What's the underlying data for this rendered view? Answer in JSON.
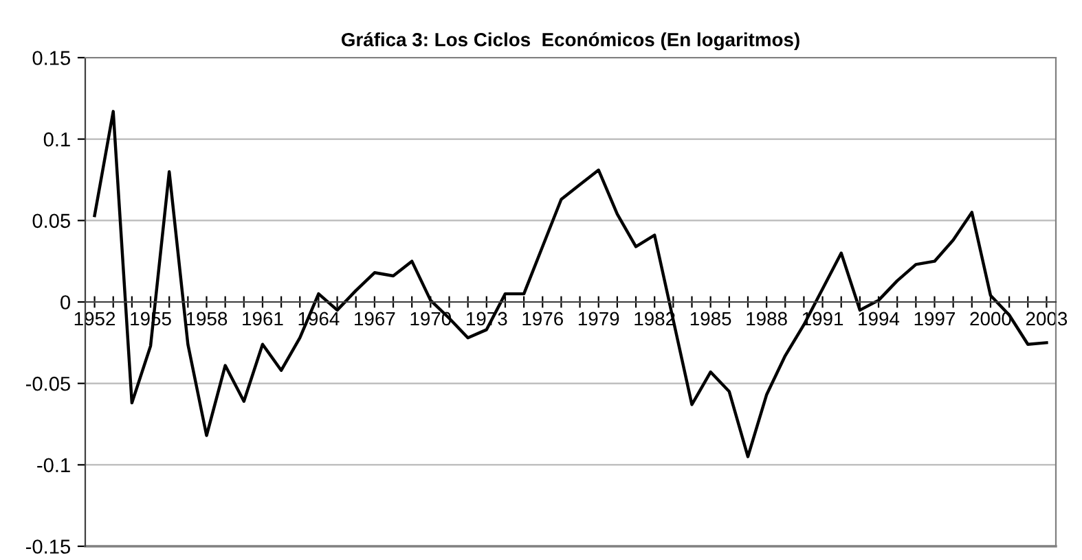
{
  "chart_data": {
    "type": "line",
    "title": "Gráfica 3: Los Ciclos  Económicos (En logaritmos)",
    "categories": [
      "1952",
      null,
      null,
      "1955",
      null,
      null,
      "1958",
      null,
      null,
      "1961",
      null,
      null,
      "1964",
      null,
      null,
      "1967",
      null,
      null,
      "1970",
      null,
      null,
      "1973",
      null,
      null,
      "1976",
      null,
      null,
      "1979",
      null,
      null,
      "1982",
      null,
      null,
      "1985",
      null,
      null,
      "1988",
      null,
      null,
      "1991",
      null,
      null,
      "1994",
      null,
      null,
      "1997",
      null,
      null,
      "2000",
      null,
      null,
      "2003"
    ],
    "series": [
      {
        "color": "#000000",
        "values": [
          0.053,
          0.117,
          -0.062,
          -0.027,
          0.08,
          -0.026,
          -0.082,
          -0.039,
          -0.061,
          -0.026,
          -0.042,
          -0.022,
          0.005,
          -0.005,
          0.007,
          0.018,
          0.016,
          0.025,
          0.001,
          -0.01,
          -0.022,
          -0.017,
          0.005,
          0.005,
          0.034,
          0.063,
          0.072,
          0.081,
          0.054,
          0.034,
          0.041,
          -0.011,
          -0.063,
          -0.043,
          -0.055,
          -0.095,
          -0.057,
          -0.033,
          -0.014,
          0.008,
          0.03,
          -0.005,
          0.001,
          0.013,
          0.023,
          0.025,
          0.038,
          0.055,
          0.004,
          -0.008,
          -0.026,
          -0.025
        ]
      }
    ],
    "ylim": [
      -0.15,
      0.15
    ],
    "yticks": [
      -0.15,
      -0.1,
      -0.05,
      0,
      0.05,
      0.1,
      0.15
    ],
    "grid": "y",
    "legend": false,
    "marker": "none",
    "line_style": "solid"
  }
}
